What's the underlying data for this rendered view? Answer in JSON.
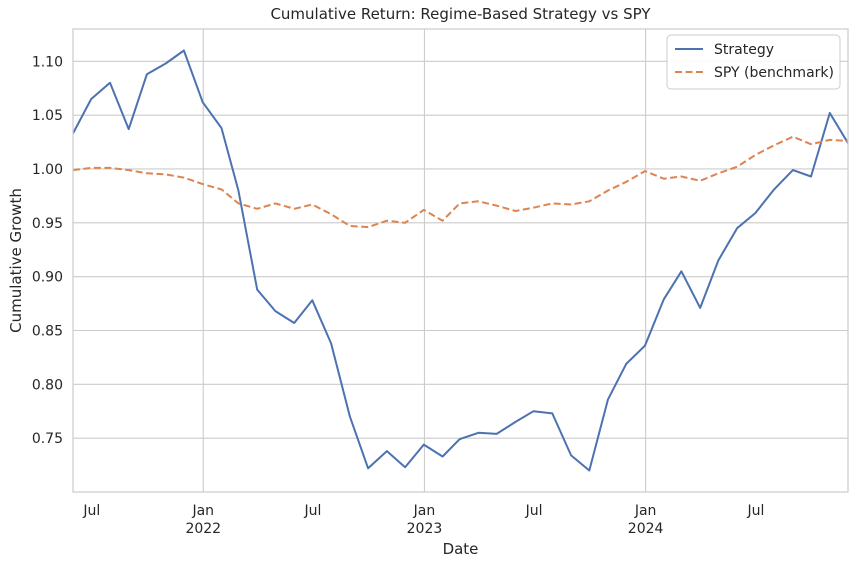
{
  "chart_data": {
    "type": "line",
    "title": "Cumulative Return: Regime-Based Strategy vs SPY",
    "xlabel": "Date",
    "ylabel": "Cumulative Growth",
    "xlim": [
      "2021-05-31",
      "2024-11-30"
    ],
    "ylim": [
      0.7,
      1.13
    ],
    "grid": true,
    "legend_position": "top-right",
    "x_ticks": [
      {
        "date": "2021-07-01",
        "label": "Jul",
        "year": ""
      },
      {
        "date": "2022-01-01",
        "label": "Jan",
        "year": "2022"
      },
      {
        "date": "2022-07-01",
        "label": "Jul",
        "year": ""
      },
      {
        "date": "2023-01-01",
        "label": "Jan",
        "year": "2023"
      },
      {
        "date": "2023-07-01",
        "label": "Jul",
        "year": ""
      },
      {
        "date": "2024-01-01",
        "label": "Jan",
        "year": "2024"
      },
      {
        "date": "2024-07-01",
        "label": "Jul",
        "year": ""
      }
    ],
    "y_ticks": [
      {
        "value": 0.75,
        "label": "0.75"
      },
      {
        "value": 0.8,
        "label": "0.80"
      },
      {
        "value": 0.85,
        "label": "0.85"
      },
      {
        "value": 0.9,
        "label": "0.90"
      },
      {
        "value": 0.95,
        "label": "0.95"
      },
      {
        "value": 1.0,
        "label": "1.00"
      },
      {
        "value": 1.05,
        "label": "1.05"
      },
      {
        "value": 1.1,
        "label": "1.10"
      }
    ],
    "x": [
      "2021-05-31",
      "2021-06-30",
      "2021-07-31",
      "2021-08-31",
      "2021-09-30",
      "2021-10-31",
      "2021-11-30",
      "2021-12-31",
      "2022-01-31",
      "2022-02-28",
      "2022-03-31",
      "2022-04-30",
      "2022-05-31",
      "2022-06-30",
      "2022-07-31",
      "2022-08-31",
      "2022-09-30",
      "2022-10-31",
      "2022-11-30",
      "2022-12-31",
      "2023-01-31",
      "2023-02-28",
      "2023-03-31",
      "2023-04-30",
      "2023-05-31",
      "2023-06-30",
      "2023-07-31",
      "2023-08-31",
      "2023-09-30",
      "2023-10-31",
      "2023-11-30",
      "2023-12-31",
      "2024-01-31",
      "2024-02-29",
      "2024-03-31",
      "2024-04-30",
      "2024-05-31",
      "2024-06-30",
      "2024-07-31",
      "2024-08-31",
      "2024-09-30",
      "2024-10-31",
      "2024-11-30"
    ],
    "series": [
      {
        "name": "Strategy",
        "color": "#4c72b0",
        "style": "solid",
        "values": [
          1.033,
          1.065,
          1.08,
          1.037,
          1.088,
          1.098,
          1.11,
          1.062,
          1.038,
          0.98,
          0.888,
          0.868,
          0.857,
          0.878,
          0.838,
          0.77,
          0.722,
          0.738,
          0.723,
          0.744,
          0.733,
          0.749,
          0.755,
          0.754,
          0.765,
          0.775,
          0.773,
          0.734,
          0.72,
          0.786,
          0.819,
          0.836,
          0.879,
          0.905,
          0.871,
          0.915,
          0.945,
          0.959,
          0.981,
          0.999,
          0.993,
          1.052,
          1.024
        ]
      },
      {
        "name": "SPY (benchmark)",
        "color": "#dd8452",
        "style": "dashed",
        "values": [
          0.999,
          1.001,
          1.001,
          0.999,
          0.996,
          0.995,
          0.992,
          0.986,
          0.981,
          0.968,
          0.963,
          0.968,
          0.963,
          0.967,
          0.958,
          0.947,
          0.946,
          0.952,
          0.95,
          0.962,
          0.952,
          0.968,
          0.97,
          0.966,
          0.961,
          0.964,
          0.968,
          0.967,
          0.97,
          0.98,
          0.988,
          0.998,
          0.991,
          0.993,
          0.989,
          0.996,
          1.002,
          1.013,
          1.022,
          1.03,
          1.023,
          1.027,
          1.026
        ]
      }
    ]
  }
}
